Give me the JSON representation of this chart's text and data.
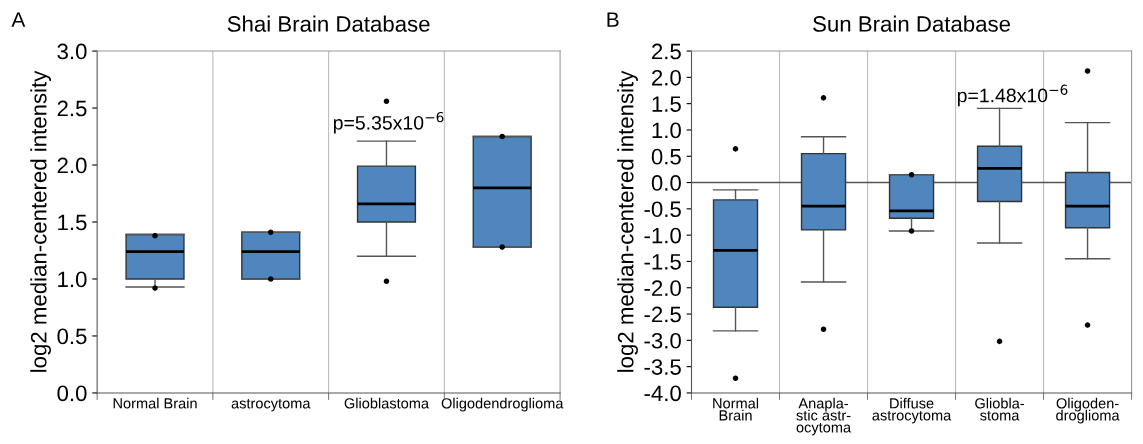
{
  "chart_data": [
    {
      "type": "box",
      "title": "Shai Brain Database",
      "ylabel": "log2 median-centered intensity",
      "categories": [
        "Normal Brain",
        "astrocytoma",
        "Glioblastoma",
        "Oligodendroglioma"
      ],
      "color": "#4f86be",
      "boxes": [
        {
          "low": 0.93,
          "q1": 1.0,
          "median": 1.24,
          "q3": 1.39,
          "high": 1.39,
          "outliers": [
            1.38,
            0.92
          ]
        },
        {
          "low": 1.0,
          "q1": 1.0,
          "median": 1.24,
          "q3": 1.41,
          "high": 1.41,
          "outliers": [
            1.41,
            1.0
          ]
        },
        {
          "low": 1.2,
          "q1": 1.5,
          "median": 1.66,
          "q3": 1.99,
          "high": 2.21,
          "outliers": [
            2.56,
            0.98
          ]
        },
        {
          "low": 1.28,
          "q1": 1.28,
          "median": 1.8,
          "q3": 2.25,
          "high": 2.25,
          "outliers": [
            2.25,
            1.28
          ]
        }
      ],
      "ylim": [
        0.0,
        3.0
      ],
      "yticks": [
        {
          "value": 0,
          "label": "0.0"
        },
        0.5,
        {
          "value": 1,
          "label": "1.0"
        },
        1.5,
        {
          "value": 2,
          "label": "2.0"
        },
        2.5,
        {
          "value": 3,
          "label": "3.0"
        }
      ],
      "grid": "x",
      "annotations": [
        "A",
        "p=5.35x10$^{−6}$"
      ]
    },
    {
      "type": "box",
      "title": "Sun Brain Database",
      "ylabel": "log2 median-centered intensity",
      "categories": [
        "Normal\nBrain",
        "Anapla-\nstic astr-\nocytoma",
        "Diffuse\nastrocytoma",
        "Gliobla-\nstoma",
        "Oligoden-\ndroglioma"
      ],
      "color": "#4f86be",
      "boxes": [
        {
          "low": -2.82,
          "q1": -2.37,
          "median": -1.29,
          "q3": -0.33,
          "high": -0.14,
          "outliers": [
            0.64,
            -3.72
          ]
        },
        {
          "low": -1.89,
          "q1": -0.9,
          "median": -0.45,
          "q3": 0.55,
          "high": 0.87,
          "outliers": [
            1.61,
            -2.79
          ]
        },
        {
          "low": -0.92,
          "q1": -0.68,
          "median": -0.54,
          "q3": 0.15,
          "high": 0.15,
          "outliers": [
            0.15,
            -0.92
          ]
        },
        {
          "low": -1.15,
          "q1": -0.36,
          "median": 0.27,
          "q3": 0.69,
          "high": 1.41,
          "outliers": [
            -3.02
          ]
        },
        {
          "low": -1.45,
          "q1": -0.86,
          "median": -0.45,
          "q3": 0.19,
          "high": 1.14,
          "outliers": [
            2.12,
            -2.71
          ]
        }
      ],
      "ylim": [
        -4.0,
        2.5
      ],
      "yticks": [
        {
          "value": -4,
          "label": "-4.0"
        },
        -3.5,
        {
          "value": -3,
          "label": "-3.0"
        },
        -2.5,
        {
          "value": -2,
          "label": "-2.0"
        },
        -1.5,
        {
          "value": -1,
          "label": "-1.0"
        },
        -0.5,
        {
          "value": 0,
          "label": "0.0"
        },
        0.5,
        {
          "value": 1,
          "label": "1.0"
        },
        1.5,
        {
          "value": 2,
          "label": "2.0"
        },
        2.5
      ],
      "grid": "x",
      "ref_lines": [
        {
          "axis": "y",
          "value": 0,
          "color": "#555555"
        }
      ],
      "annotations": [
        "B",
        "p=1.48x10$^{−6}$"
      ]
    }
  ]
}
